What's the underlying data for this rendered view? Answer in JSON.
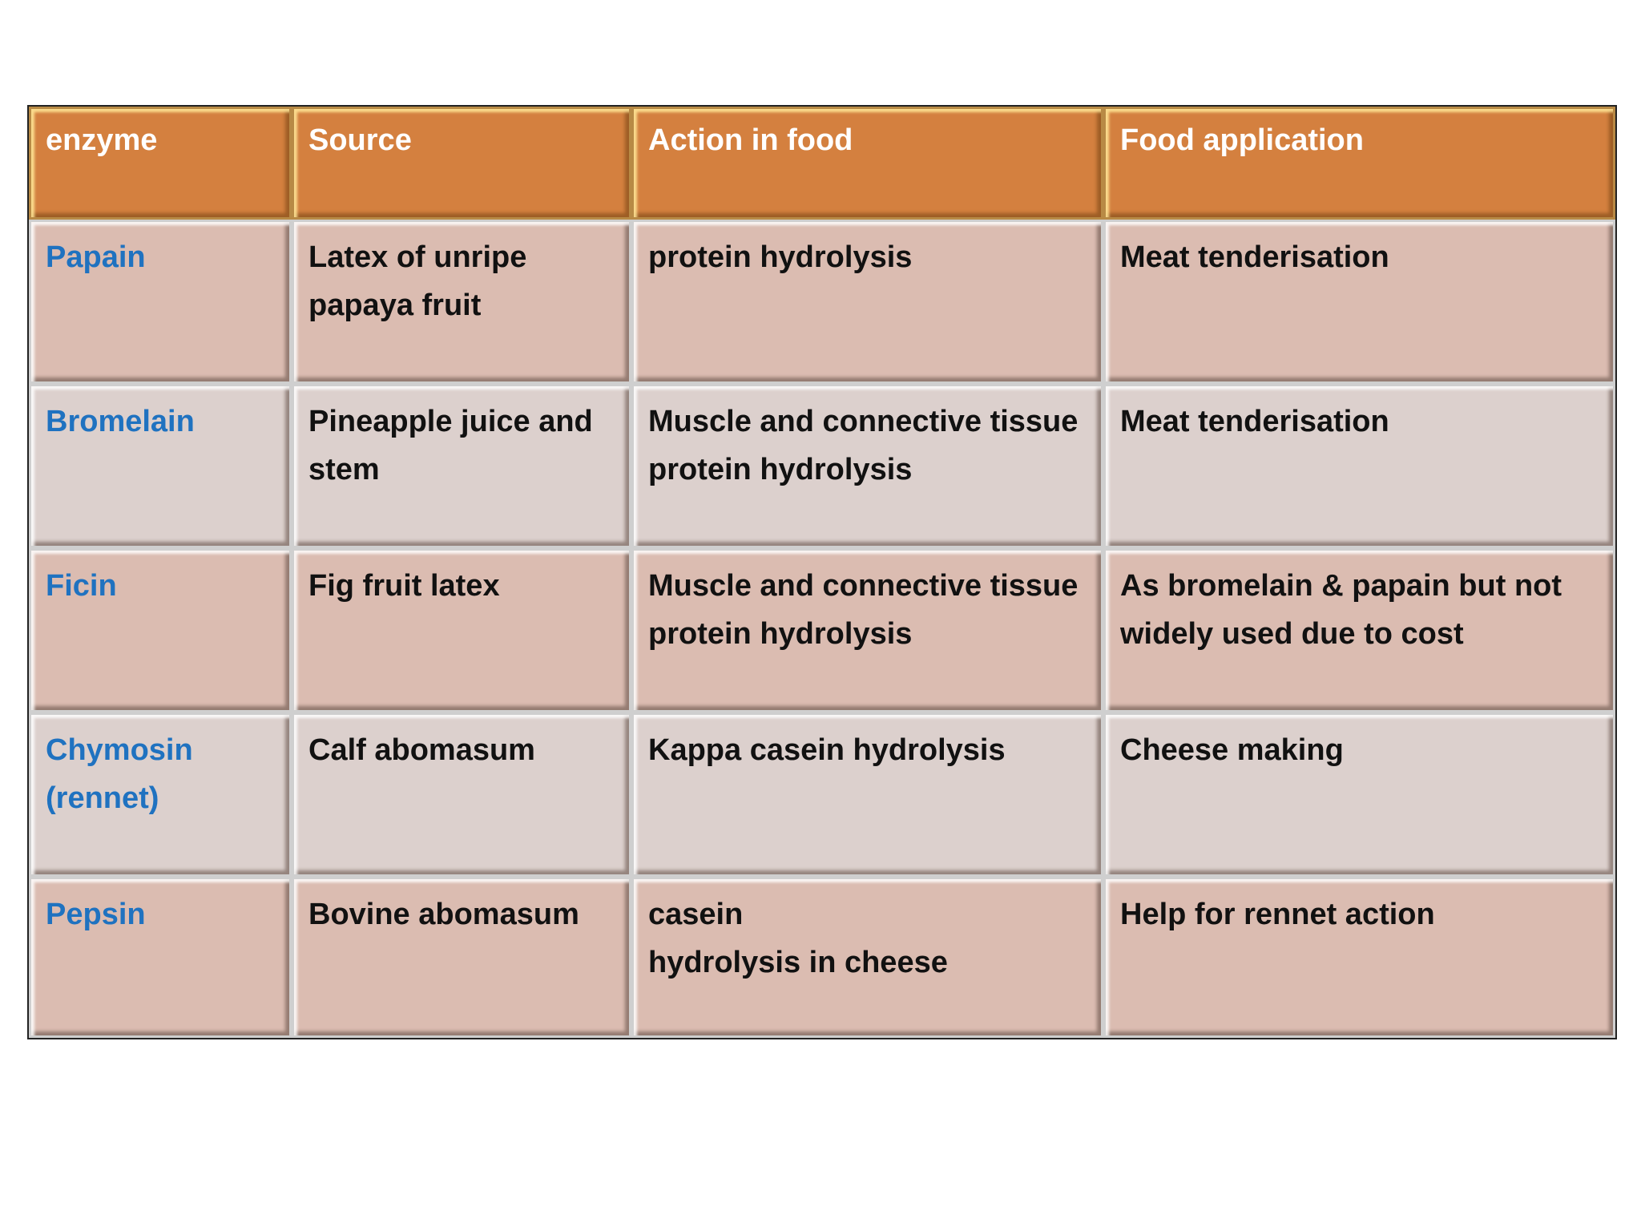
{
  "table": {
    "header": [
      "enzyme",
      "Source",
      "Action in food",
      "Food application"
    ],
    "rows": [
      [
        "Papain",
        "Latex of unripe papaya fruit",
        "protein hydrolysis",
        "Meat tenderisation"
      ],
      [
        "Bromelain",
        "Pineapple juice and stem",
        "Muscle and connective tissue protein hydrolysis",
        "Meat tenderisation"
      ],
      [
        "Ficin",
        "Fig fruit latex",
        "Muscle and connective tissue protein hydrolysis",
        "As bromelain & papain but not widely used due to cost"
      ],
      [
        "Chymosin (rennet)",
        "Calf abomasum",
        "Kappa casein hydrolysis",
        "Cheese making"
      ],
      [
        "Pepsin",
        "Bovine abomasum",
        " casein\nhydrolysis in cheese",
        "Help for rennet action"
      ]
    ]
  }
}
